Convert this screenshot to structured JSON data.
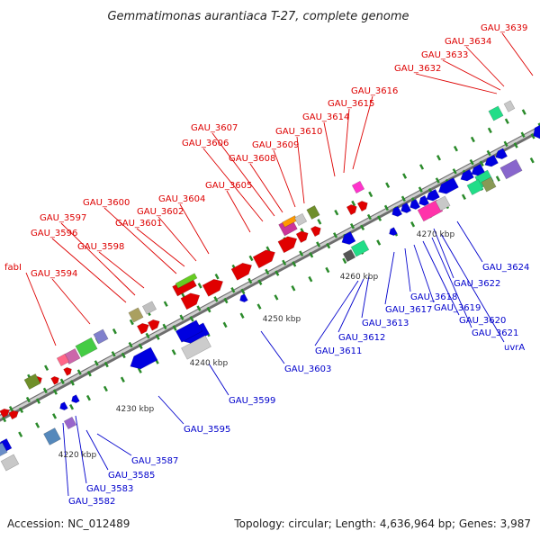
{
  "title": "Gemmatimonas aurantiaca T-27, complete genome",
  "footer": {
    "accession": "Accession: NC_012489",
    "topology": "Topology: circular; Length: 4,636,964 bp; Genes: 3,987"
  },
  "colors": {
    "forward": "#e00000",
    "reverse": "#0000e0",
    "backbone": "#a8a8a8"
  },
  "scale_labels": [
    "4220 kbp",
    "4230 kbp",
    "4240 kbp",
    "4250 kbp",
    "4260 kbp",
    "4270 kbp"
  ],
  "forward_genes": [
    "fabI",
    "GAU_3594",
    "GAU_3596",
    "GAU_3597",
    "GAU_3598",
    "GAU_3600",
    "GAU_3601",
    "GAU_3602",
    "GAU_3604",
    "GAU_3605",
    "GAU_3606",
    "GAU_3607",
    "GAU_3608",
    "GAU_3609",
    "GAU_3610",
    "GAU_3614",
    "GAU_3615",
    "GAU_3616",
    "GAU_3632",
    "GAU_3633",
    "GAU_3634",
    "GAU_3639"
  ],
  "reverse_genes": [
    "GAU_3582",
    "GAU_3583",
    "GAU_3585",
    "GAU_3587",
    "GAU_3595",
    "GAU_3599",
    "GAU_3603",
    "GAU_3611",
    "GAU_3612",
    "GAU_3613",
    "GAU_3617",
    "GAU_3618",
    "GAU_3619",
    "GAU_3620",
    "GAU_3621",
    "uvrA",
    "GAU_3622",
    "GAU_3624"
  ]
}
